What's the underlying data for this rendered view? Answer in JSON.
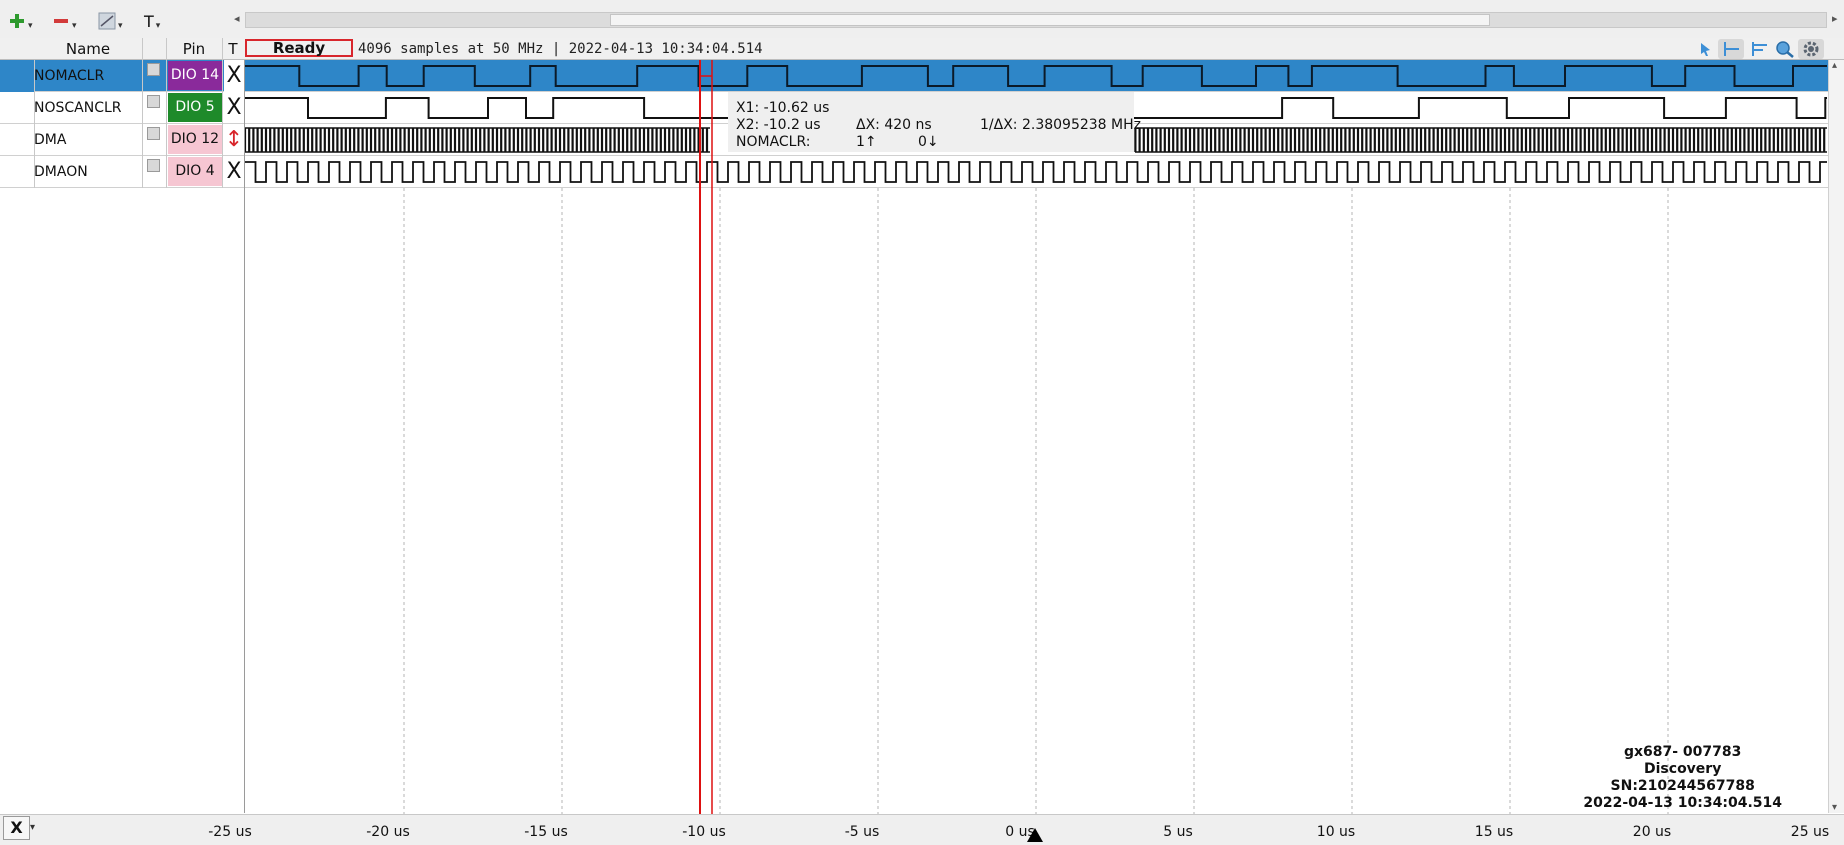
{
  "toolbar": {
    "add_icon": "plus-icon",
    "remove_icon": "minus-icon",
    "plot_icon": "signal-plot-icon",
    "text_label": "T",
    "drop_glyph": "▾"
  },
  "header": {
    "name_col": "Name",
    "pin_col": "Pin",
    "trigger_col": "T",
    "status": "Ready",
    "info": "4096 samples at 50 MHz | 2022-04-13 10:34:04.514"
  },
  "signals": [
    {
      "name": "NOMACLR",
      "pin": "DIO 14",
      "trigger": "X",
      "pin_bg": "#8a2a9b",
      "selected": true
    },
    {
      "name": "NOSCANCLR",
      "pin": "DIO  5",
      "trigger": "X",
      "pin_bg": "#1e8a2a",
      "selected": false
    },
    {
      "name": "DMA",
      "pin": "DIO 12",
      "trigger": "↕",
      "pin_bg": "#f6c6d2",
      "selected": false
    },
    {
      "name": "DMAON",
      "pin": "DIO  4",
      "trigger": "X",
      "pin_bg": "#f6c6d2",
      "selected": false
    }
  ],
  "cursor_popup": {
    "x1": "X1: -10.62 us",
    "x2": "X2: -10.2 us",
    "dx": "ΔX: 420 ns",
    "inv_dx": "1/ΔX: 2.38095238 MHz",
    "signal": "NOMACLR:",
    "rising": "1↑",
    "falling": "0↓"
  },
  "device": {
    "name": "gx687- 007783",
    "model": "Discovery",
    "serial": "SN:210244567788",
    "timestamp": "2022-04-13 10:34:04.514"
  },
  "axis": {
    "button": "X",
    "ticks": [
      "-25 us",
      "-20 us",
      "-15 us",
      "-10 us",
      "-5 us",
      "0 us",
      "5 us",
      "10 us",
      "15 us",
      "20 us",
      "25 us"
    ]
  },
  "colors": {
    "selection": "#2e86c8",
    "cursor": "#dd1111",
    "accent_red": "#d8262c"
  }
}
